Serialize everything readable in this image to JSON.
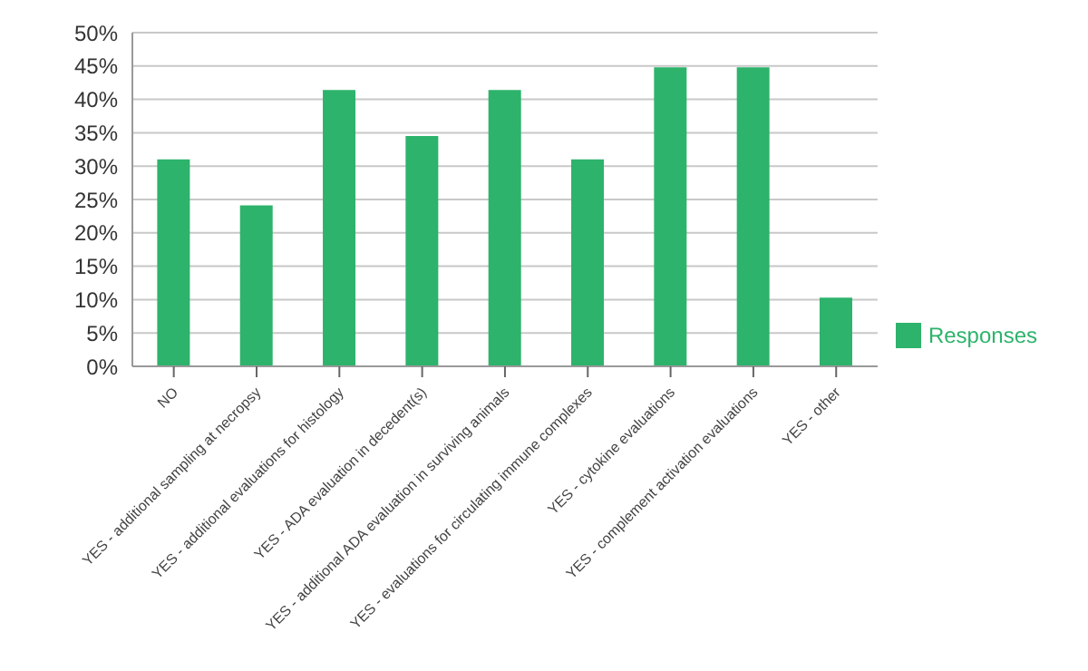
{
  "chart_data": {
    "type": "bar",
    "categories": [
      "NO",
      "YES - additional sampling at necropsy",
      "YES - additional evaluations for histology",
      "YES - ADA evaluation in decedent(s)",
      "YES - additional ADA evaluation in surviving animals",
      "YES - evaluations for circulating immune complexes",
      "YES - cytokine evaluations",
      "YES - complement activation evaluations",
      "YES - other"
    ],
    "series": [
      {
        "name": "Responses",
        "color": "#2db36b",
        "values": [
          31,
          24.1,
          41.4,
          34.5,
          41.4,
          31,
          44.8,
          44.8,
          10.3
        ]
      }
    ],
    "ylim": [
      0,
      50
    ],
    "yticks": [
      {
        "value": 0,
        "label": "0%"
      },
      {
        "value": 5,
        "label": "5%"
      },
      {
        "value": 10,
        "label": "10%"
      },
      {
        "value": 15,
        "label": "15%"
      },
      {
        "value": 20,
        "label": "20%"
      },
      {
        "value": 25,
        "label": "25%"
      },
      {
        "value": 30,
        "label": "30%"
      },
      {
        "value": 35,
        "label": "35%"
      },
      {
        "value": 40,
        "label": "40%"
      },
      {
        "value": 45,
        "label": "45%"
      },
      {
        "value": 50,
        "label": "50%"
      }
    ],
    "grid": "y",
    "legend": "right"
  }
}
